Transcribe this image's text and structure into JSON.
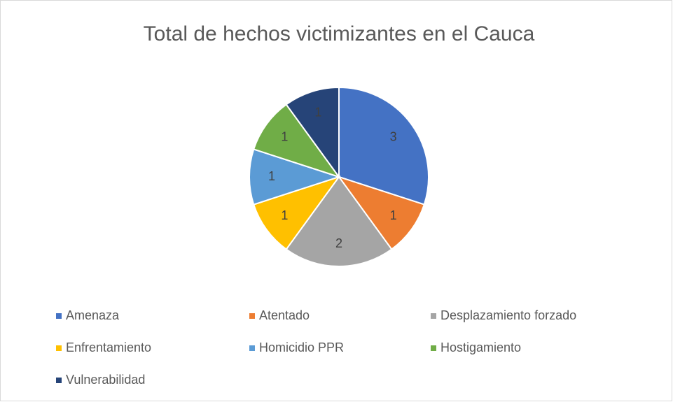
{
  "chart_data": {
    "type": "pie",
    "title": "Total de hechos victimizantes en el Cauca",
    "categories": [
      "Amenaza",
      "Atentado",
      "Desplazamiento forzado",
      "Enfrentamiento",
      "Homicidio PPR",
      "Hostigamiento",
      "Vulnerabilidad"
    ],
    "values": [
      3,
      1,
      2,
      1,
      1,
      1,
      1
    ],
    "colors": [
      "#4472c4",
      "#ed7d31",
      "#a5a5a5",
      "#ffc000",
      "#5b9bd5",
      "#70ad47",
      "#264478"
    ],
    "legend": "bottom"
  }
}
